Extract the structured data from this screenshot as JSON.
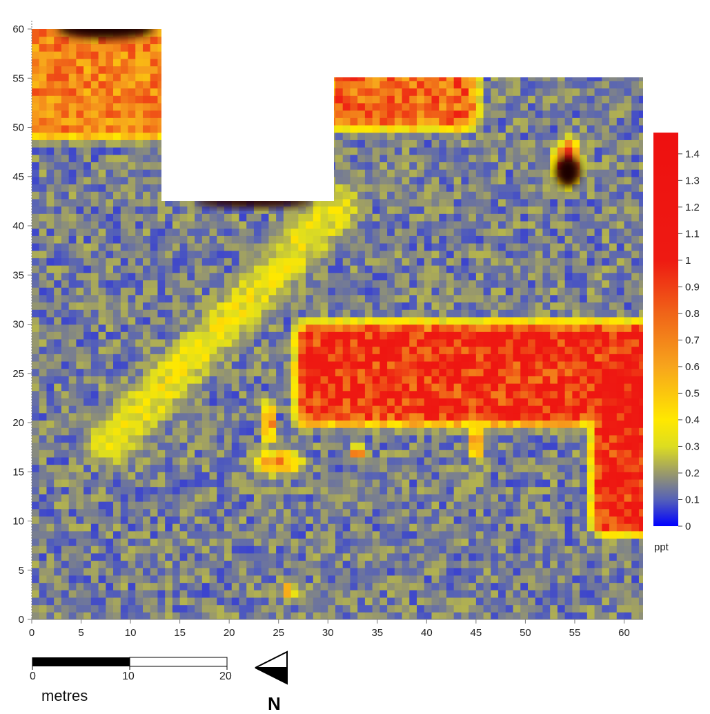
{
  "chart_data": {
    "type": "heatmap",
    "title": "",
    "xlabel": "",
    "ylabel": "",
    "xlim": [
      0,
      62
    ],
    "ylim": [
      0,
      60
    ],
    "x_ticks": [
      "0",
      "5",
      "10",
      "15",
      "20",
      "25",
      "30",
      "35",
      "40",
      "45",
      "50",
      "55",
      "60"
    ],
    "y_ticks": [
      "0",
      "5",
      "10",
      "15",
      "20",
      "25",
      "30",
      "35",
      "40",
      "45",
      "50",
      "55",
      "60"
    ],
    "survey_extent": [
      {
        "x0": 0,
        "x1": 13.2,
        "y0": 0,
        "y1": 60
      },
      {
        "x0": 13.2,
        "x1": 30.9,
        "y0": 0,
        "y1": 42.5
      },
      {
        "x0": 30.9,
        "x1": 62.4,
        "y0": 0,
        "y1": 55
      }
    ],
    "colorbar": {
      "unit": "ppt",
      "min": 0,
      "max": 1.48,
      "ticks": [
        "0",
        "0.1",
        "0.2",
        "0.3",
        "0.4",
        "0.5",
        "0.6",
        "0.7",
        "0.8",
        "0.9",
        "1",
        "1.1",
        "1.2",
        "1.3",
        "1.4"
      ],
      "color_stops": [
        {
          "value": 0,
          "color": "#0000ff"
        },
        {
          "value": 0.1,
          "color": "#5561b8"
        },
        {
          "value": 0.2,
          "color": "#9a9a6a"
        },
        {
          "value": 0.3,
          "color": "#dddd20"
        },
        {
          "value": 0.4,
          "color": "#ffe800"
        },
        {
          "value": 0.6,
          "color": "#f7a51c"
        },
        {
          "value": 0.8,
          "color": "#f06418"
        },
        {
          "value": 1.0,
          "color": "#ee1a12"
        },
        {
          "value": 1.48,
          "color": "#ee1010"
        }
      ]
    },
    "features": [
      {
        "shape": "band",
        "x": [
          28,
          62
        ],
        "y": [
          21,
          29
        ],
        "value": 1.1
      },
      {
        "shape": "band",
        "x": [
          58,
          62
        ],
        "y": [
          10,
          24
        ],
        "value": 1.15
      },
      {
        "shape": "band",
        "x": [
          0,
          13
        ],
        "y": [
          50,
          60
        ],
        "value": 0.8
      },
      {
        "shape": "band",
        "x": [
          31,
          44
        ],
        "y": [
          51,
          55
        ],
        "value": 0.9
      },
      {
        "shape": "ellipse",
        "x": 54.3,
        "y": 46.5,
        "rx": 1.5,
        "ry": 2.5,
        "value": 1.25
      },
      {
        "shape": "linear",
        "from": [
          8,
          18
        ],
        "to": [
          31,
          42
        ],
        "width": 3,
        "value": 0.42
      },
      {
        "shape": "ellipse",
        "x": 24,
        "y": 20,
        "rx": 0.8,
        "ry": 2.5,
        "value": 0.9
      },
      {
        "shape": "ellipse",
        "x": 25,
        "y": 16,
        "rx": 3,
        "ry": 1.5,
        "value": 0.75
      },
      {
        "shape": "ellipse",
        "x": 45,
        "y": 18,
        "rx": 1,
        "ry": 2,
        "value": 0.85
      },
      {
        "shape": "ellipse",
        "x": 33,
        "y": 17,
        "rx": 1,
        "ry": 1,
        "value": 0.8
      },
      {
        "shape": "ellipse",
        "x": 26,
        "y": 3,
        "rx": 0.8,
        "ry": 1,
        "value": 0.9
      }
    ]
  },
  "scale_bar": {
    "labels": [
      "0",
      "10",
      "20"
    ],
    "unit": "metres",
    "length_m": 20
  },
  "north_arrow": {
    "label": "N"
  }
}
